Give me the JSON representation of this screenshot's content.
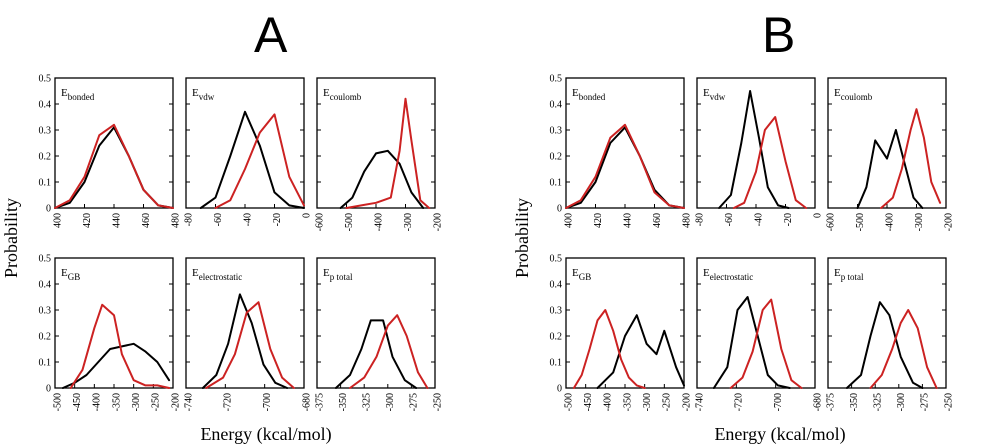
{
  "figure": {
    "panel_A_label": "A",
    "panel_B_label": "B",
    "ylabel": "Probability",
    "xlabel": "Energy (kcal/mol)",
    "colors": {
      "black_series": "#000000",
      "red_series": "#cc2222"
    }
  },
  "chart_data": [
    {
      "panel": "A",
      "type": "line",
      "title": "E",
      "title_sub": "bonded",
      "xlim": [
        400,
        480
      ],
      "xticks": [
        "400",
        "420",
        "440",
        "460",
        "480"
      ],
      "ylim": [
        0,
        0.5
      ],
      "yticks": [
        "0",
        "0.1",
        "0.2",
        "0.3",
        "0.4",
        "0.5"
      ],
      "series": [
        {
          "name": "black",
          "color": "#000000",
          "x": [
            400,
            410,
            420,
            430,
            440,
            450,
            460,
            470,
            480
          ],
          "y": [
            0,
            0.02,
            0.1,
            0.24,
            0.31,
            0.2,
            0.07,
            0.01,
            0
          ]
        },
        {
          "name": "red",
          "color": "#cc2222",
          "x": [
            400,
            410,
            420,
            430,
            440,
            450,
            460,
            470,
            480
          ],
          "y": [
            0,
            0.03,
            0.12,
            0.28,
            0.32,
            0.2,
            0.07,
            0.01,
            0
          ]
        }
      ]
    },
    {
      "panel": "A",
      "type": "line",
      "title": "E",
      "title_sub": "vdw",
      "xlim": [
        -80,
        0
      ],
      "xticks": [
        "-80",
        "-60",
        "-40",
        "-20",
        "0"
      ],
      "ylim": [
        0,
        0.5
      ],
      "yticks": [
        "0",
        "0.1",
        "0.2",
        "0.3",
        "0.4",
        "0.5"
      ],
      "series": [
        {
          "name": "black",
          "color": "#000000",
          "x": [
            -70,
            -60,
            -50,
            -40,
            -30,
            -20,
            -10,
            0
          ],
          "y": [
            0,
            0.04,
            0.2,
            0.37,
            0.24,
            0.06,
            0.01,
            0
          ]
        },
        {
          "name": "red",
          "color": "#cc2222",
          "x": [
            -60,
            -50,
            -40,
            -30,
            -20,
            -10,
            0
          ],
          "y": [
            0,
            0.03,
            0.15,
            0.29,
            0.36,
            0.12,
            0.01
          ]
        }
      ]
    },
    {
      "panel": "A",
      "type": "line",
      "title": "E",
      "title_sub": "coulomb",
      "xlim": [
        -600,
        -200
      ],
      "xticks": [
        "-600",
        "-500",
        "-400",
        "-300",
        "-200"
      ],
      "ylim": [
        0,
        0.5
      ],
      "yticks": [
        "0",
        "0.1",
        "0.2",
        "0.3",
        "0.4",
        "0.5"
      ],
      "series": [
        {
          "name": "black",
          "color": "#000000",
          "x": [
            -520,
            -480,
            -440,
            -400,
            -360,
            -320,
            -280,
            -240
          ],
          "y": [
            0,
            0.04,
            0.14,
            0.21,
            0.22,
            0.17,
            0.06,
            0
          ]
        },
        {
          "name": "red",
          "color": "#cc2222",
          "x": [
            -500,
            -450,
            -400,
            -350,
            -320,
            -300,
            -280,
            -250,
            -220
          ],
          "y": [
            0,
            0.01,
            0.02,
            0.04,
            0.22,
            0.42,
            0.26,
            0.03,
            0
          ]
        }
      ]
    },
    {
      "panel": "A",
      "type": "line",
      "title": "E",
      "title_sub": "GB",
      "xlim": [
        -500,
        -200
      ],
      "xticks": [
        "-500",
        "-450",
        "-400",
        "-350",
        "-300",
        "-250",
        "-200"
      ],
      "ylim": [
        0,
        0.5
      ],
      "yticks": [
        "0",
        "0.1",
        "0.2",
        "0.3",
        "0.4",
        "0.5"
      ],
      "series": [
        {
          "name": "black",
          "color": "#000000",
          "x": [
            -480,
            -450,
            -420,
            -390,
            -360,
            -330,
            -300,
            -270,
            -240,
            -210
          ],
          "y": [
            0,
            0.02,
            0.05,
            0.1,
            0.15,
            0.16,
            0.17,
            0.14,
            0.1,
            0.03
          ]
        },
        {
          "name": "red",
          "color": "#cc2222",
          "x": [
            -460,
            -430,
            -400,
            -380,
            -350,
            -330,
            -300,
            -270,
            -240,
            -210
          ],
          "y": [
            0,
            0.07,
            0.23,
            0.32,
            0.28,
            0.13,
            0.03,
            0.01,
            0.01,
            0
          ]
        }
      ]
    },
    {
      "panel": "A",
      "type": "line",
      "title": "E",
      "title_sub": "electrostatic",
      "xlim": [
        -740,
        -670
      ],
      "xticks": [
        "-740",
        "-720",
        "-700",
        "-680"
      ],
      "ylim": [
        0,
        0.5
      ],
      "yticks": [
        "0",
        "0.1",
        "0.2",
        "0.3",
        "0.4",
        "0.5"
      ],
      "series": [
        {
          "name": "black",
          "color": "#000000",
          "x": [
            -730,
            -722,
            -715,
            -708,
            -701,
            -694,
            -687,
            -680
          ],
          "y": [
            0,
            0.05,
            0.17,
            0.36,
            0.25,
            0.09,
            0.02,
            0
          ]
        },
        {
          "name": "red",
          "color": "#cc2222",
          "x": [
            -728,
            -718,
            -711,
            -704,
            -697,
            -690,
            -683,
            -676
          ],
          "y": [
            0,
            0.04,
            0.13,
            0.29,
            0.33,
            0.15,
            0.04,
            0
          ]
        }
      ]
    },
    {
      "panel": "A",
      "type": "line",
      "title": "E",
      "title_sub": "p total",
      "xlim": [
        -375,
        -250
      ],
      "xticks": [
        "-375",
        "-350",
        "-325",
        "-300",
        "-275",
        "-250"
      ],
      "ylim": [
        0,
        0.5
      ],
      "yticks": [
        "0",
        "0.1",
        "0.2",
        "0.3",
        "0.4",
        "0.5"
      ],
      "series": [
        {
          "name": "black",
          "color": "#000000",
          "x": [
            -355,
            -340,
            -328,
            -318,
            -305,
            -295,
            -282,
            -270
          ],
          "y": [
            0,
            0.05,
            0.15,
            0.26,
            0.26,
            0.12,
            0.03,
            0
          ]
        },
        {
          "name": "red",
          "color": "#cc2222",
          "x": [
            -340,
            -325,
            -312,
            -300,
            -290,
            -280,
            -268,
            -258
          ],
          "y": [
            0,
            0.04,
            0.12,
            0.24,
            0.28,
            0.2,
            0.06,
            0
          ]
        }
      ]
    },
    {
      "panel": "B",
      "type": "line",
      "title": "E",
      "title_sub": "bonded",
      "xlim": [
        400,
        480
      ],
      "xticks": [
        "400",
        "420",
        "440",
        "460",
        "480"
      ],
      "ylim": [
        0,
        0.5
      ],
      "yticks": [
        "0",
        "0.1",
        "0.2",
        "0.3",
        "0.4",
        "0.5"
      ],
      "series": [
        {
          "name": "black",
          "color": "#000000",
          "x": [
            400,
            410,
            420,
            430,
            440,
            450,
            460,
            470,
            480
          ],
          "y": [
            0,
            0.02,
            0.1,
            0.25,
            0.31,
            0.2,
            0.07,
            0.01,
            0
          ]
        },
        {
          "name": "red",
          "color": "#cc2222",
          "x": [
            400,
            410,
            420,
            430,
            440,
            450,
            460,
            470,
            480
          ],
          "y": [
            0,
            0.03,
            0.12,
            0.27,
            0.32,
            0.2,
            0.06,
            0.01,
            0
          ]
        }
      ]
    },
    {
      "panel": "B",
      "type": "line",
      "title": "E",
      "title_sub": "vdw",
      "xlim": [
        -80,
        0
      ],
      "xticks": [
        "-80",
        "-60",
        "-40",
        "-20",
        "0"
      ],
      "ylim": [
        0,
        0.5
      ],
      "yticks": [
        "0",
        "0.1",
        "0.2",
        "0.3",
        "0.4",
        "0.5"
      ],
      "series": [
        {
          "name": "black",
          "color": "#000000",
          "x": [
            -65,
            -57,
            -50,
            -44,
            -38,
            -32,
            -25,
            -18
          ],
          "y": [
            0,
            0.05,
            0.25,
            0.45,
            0.27,
            0.08,
            0.01,
            0
          ]
        },
        {
          "name": "red",
          "color": "#cc2222",
          "x": [
            -55,
            -48,
            -40,
            -34,
            -27,
            -20,
            -13,
            -6
          ],
          "y": [
            0,
            0.02,
            0.14,
            0.3,
            0.35,
            0.18,
            0.03,
            0
          ]
        }
      ]
    },
    {
      "panel": "B",
      "type": "line",
      "title": "E",
      "title_sub": "coulomb",
      "xlim": [
        -600,
        -200
      ],
      "xticks": [
        "-600",
        "-500",
        "-400",
        "-300",
        "-200"
      ],
      "ylim": [
        0,
        0.5
      ],
      "yticks": [
        "0",
        "0.1",
        "0.2",
        "0.3",
        "0.4",
        "0.5"
      ],
      "series": [
        {
          "name": "black",
          "color": "#000000",
          "x": [
            -500,
            -470,
            -440,
            -400,
            -370,
            -340,
            -310,
            -280
          ],
          "y": [
            0,
            0.08,
            0.26,
            0.19,
            0.3,
            0.17,
            0.04,
            0
          ]
        },
        {
          "name": "red",
          "color": "#cc2222",
          "x": [
            -420,
            -380,
            -350,
            -320,
            -300,
            -275,
            -250,
            -220
          ],
          "y": [
            0,
            0.04,
            0.15,
            0.3,
            0.38,
            0.27,
            0.1,
            0.02
          ]
        }
      ]
    },
    {
      "panel": "B",
      "type": "line",
      "title": "E",
      "title_sub": "GB",
      "xlim": [
        -500,
        -200
      ],
      "xticks": [
        "-500",
        "-450",
        "-400",
        "-350",
        "-300",
        "-250",
        "-200"
      ],
      "ylim": [
        0,
        0.5
      ],
      "yticks": [
        "0",
        "0.1",
        "0.2",
        "0.3",
        "0.4",
        "0.5"
      ],
      "series": [
        {
          "name": "black",
          "color": "#000000",
          "x": [
            -420,
            -380,
            -350,
            -320,
            -295,
            -270,
            -250,
            -220,
            -200
          ],
          "y": [
            0,
            0.06,
            0.2,
            0.28,
            0.17,
            0.13,
            0.22,
            0.08,
            0.01
          ]
        },
        {
          "name": "red",
          "color": "#cc2222",
          "x": [
            -480,
            -460,
            -440,
            -420,
            -400,
            -380,
            -360,
            -340,
            -320,
            -300
          ],
          "y": [
            0,
            0.05,
            0.15,
            0.26,
            0.3,
            0.22,
            0.11,
            0.04,
            0.01,
            0
          ]
        }
      ]
    },
    {
      "panel": "B",
      "type": "line",
      "title": "E",
      "title_sub": "electrostatic",
      "xlim": [
        -740,
        -670
      ],
      "xticks": [
        "-740",
        "-720",
        "-700",
        "-680"
      ],
      "ylim": [
        0,
        0.5
      ],
      "yticks": [
        "0",
        "0.1",
        "0.2",
        "0.3",
        "0.4",
        "0.5"
      ],
      "series": [
        {
          "name": "black",
          "color": "#000000",
          "x": [
            -730,
            -722,
            -716,
            -710,
            -704,
            -698,
            -692,
            -685
          ],
          "y": [
            0,
            0.08,
            0.3,
            0.35,
            0.2,
            0.05,
            0.01,
            0
          ]
        },
        {
          "name": "red",
          "color": "#cc2222",
          "x": [
            -720,
            -713,
            -707,
            -701,
            -696,
            -690,
            -684,
            -678
          ],
          "y": [
            0,
            0.04,
            0.14,
            0.3,
            0.34,
            0.15,
            0.03,
            0
          ]
        }
      ]
    },
    {
      "panel": "B",
      "type": "line",
      "title": "E",
      "title_sub": "p total",
      "xlim": [
        -375,
        -250
      ],
      "xticks": [
        "-375",
        "-350",
        "-325",
        "-300",
        "-275",
        "-250"
      ],
      "ylim": [
        0,
        0.5
      ],
      "yticks": [
        "0",
        "0.1",
        "0.2",
        "0.3",
        "0.4",
        "0.5"
      ],
      "series": [
        {
          "name": "black",
          "color": "#000000",
          "x": [
            -355,
            -340,
            -330,
            -320,
            -310,
            -298,
            -285,
            -275
          ],
          "y": [
            0,
            0.05,
            0.2,
            0.33,
            0.28,
            0.12,
            0.02,
            0
          ]
        },
        {
          "name": "red",
          "color": "#cc2222",
          "x": [
            -330,
            -318,
            -307,
            -298,
            -290,
            -280,
            -270,
            -260
          ],
          "y": [
            0,
            0.05,
            0.15,
            0.25,
            0.3,
            0.23,
            0.08,
            0
          ]
        }
      ]
    }
  ]
}
